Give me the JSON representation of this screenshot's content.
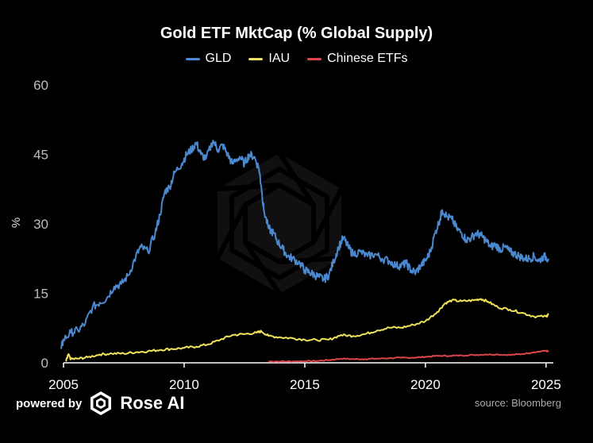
{
  "footer": {
    "powered_by": "powered by",
    "brand": "Rose AI",
    "source": "source: Bloomberg",
    "logo_icon": "rose-ai-logo-icon"
  },
  "colors": {
    "background": "#000000",
    "GLD": "#4a88cf",
    "IAU": "#f1e25a",
    "Chinese ETFs": "#d9454a"
  },
  "chart_data": {
    "type": "line",
    "title": "Gold ETF MktCap (% Global Supply)",
    "xlabel": "",
    "ylabel": "%",
    "xlim": [
      2005,
      2025.3
    ],
    "ylim": [
      0,
      60
    ],
    "x_ticks": [
      2005,
      2010,
      2015,
      2020,
      2025
    ],
    "y_ticks": [
      0,
      15,
      30,
      45,
      60
    ],
    "grid": false,
    "legend_position": "top-center",
    "series": [
      {
        "name": "GLD",
        "color": "#4a88cf",
        "points": [
          [
            2004.9,
            3
          ],
          [
            2005.0,
            5
          ],
          [
            2005.3,
            6.5
          ],
          [
            2005.6,
            7
          ],
          [
            2005.9,
            8.5
          ],
          [
            2006.2,
            12
          ],
          [
            2006.5,
            13
          ],
          [
            2006.8,
            14
          ],
          [
            2007.1,
            16.5
          ],
          [
            2007.4,
            17
          ],
          [
            2007.7,
            19
          ],
          [
            2008.0,
            23
          ],
          [
            2008.2,
            25
          ],
          [
            2008.5,
            24
          ],
          [
            2008.8,
            28
          ],
          [
            2009.0,
            32
          ],
          [
            2009.2,
            37
          ],
          [
            2009.4,
            38
          ],
          [
            2009.6,
            41
          ],
          [
            2009.9,
            43
          ],
          [
            2010.1,
            45
          ],
          [
            2010.3,
            46
          ],
          [
            2010.5,
            47.5
          ],
          [
            2010.7,
            45
          ],
          [
            2010.9,
            44
          ],
          [
            2011.2,
            48
          ],
          [
            2011.4,
            46
          ],
          [
            2011.6,
            47
          ],
          [
            2011.8,
            45
          ],
          [
            2012.0,
            43
          ],
          [
            2012.3,
            44.5
          ],
          [
            2012.5,
            43
          ],
          [
            2012.7,
            45
          ],
          [
            2012.9,
            44.5
          ],
          [
            2013.1,
            42
          ],
          [
            2013.2,
            38
          ],
          [
            2013.3,
            33
          ],
          [
            2013.5,
            29
          ],
          [
            2013.7,
            28
          ],
          [
            2013.9,
            26
          ],
          [
            2014.1,
            24.5
          ],
          [
            2014.3,
            23
          ],
          [
            2014.5,
            22.5
          ],
          [
            2014.8,
            21.5
          ],
          [
            2015.0,
            20
          ],
          [
            2015.2,
            19.5
          ],
          [
            2015.4,
            19
          ],
          [
            2015.6,
            18.5
          ],
          [
            2015.8,
            18
          ],
          [
            2016.0,
            19
          ],
          [
            2016.2,
            22
          ],
          [
            2016.4,
            25
          ],
          [
            2016.6,
            27
          ],
          [
            2016.8,
            25
          ],
          [
            2017.0,
            23.5
          ],
          [
            2017.3,
            24
          ],
          [
            2017.6,
            23
          ],
          [
            2017.9,
            23.5
          ],
          [
            2018.2,
            22.5
          ],
          [
            2018.5,
            22
          ],
          [
            2018.8,
            21
          ],
          [
            2019.0,
            21
          ],
          [
            2019.2,
            21.5
          ],
          [
            2019.4,
            20
          ],
          [
            2019.6,
            19.5
          ],
          [
            2019.8,
            21
          ],
          [
            2020.0,
            22
          ],
          [
            2020.2,
            24
          ],
          [
            2020.4,
            28
          ],
          [
            2020.6,
            31
          ],
          [
            2020.7,
            33
          ],
          [
            2020.9,
            31.5
          ],
          [
            2021.1,
            31
          ],
          [
            2021.3,
            29
          ],
          [
            2021.5,
            28
          ],
          [
            2021.7,
            26.5
          ],
          [
            2021.9,
            27
          ],
          [
            2022.1,
            28
          ],
          [
            2022.3,
            27.5
          ],
          [
            2022.5,
            26.5
          ],
          [
            2022.7,
            25
          ],
          [
            2022.9,
            25.5
          ],
          [
            2023.1,
            24.5
          ],
          [
            2023.3,
            25
          ],
          [
            2023.5,
            24
          ],
          [
            2023.7,
            23.5
          ],
          [
            2023.9,
            23
          ],
          [
            2024.1,
            22.5
          ],
          [
            2024.3,
            22.5
          ],
          [
            2024.5,
            23
          ],
          [
            2024.7,
            22
          ],
          [
            2024.9,
            23
          ],
          [
            2025.1,
            22.5
          ]
        ]
      },
      {
        "name": "IAU",
        "color": "#f1e25a",
        "points": [
          [
            2005.1,
            0.3
          ],
          [
            2005.2,
            1.8
          ],
          [
            2005.3,
            0.8
          ],
          [
            2005.6,
            0.9
          ],
          [
            2006.0,
            1.2
          ],
          [
            2006.5,
            1.8
          ],
          [
            2007.0,
            2.0
          ],
          [
            2007.5,
            2.0
          ],
          [
            2008.0,
            2.3
          ],
          [
            2008.5,
            2.5
          ],
          [
            2009.0,
            2.8
          ],
          [
            2009.5,
            3.0
          ],
          [
            2010.0,
            3.2
          ],
          [
            2010.5,
            3.5
          ],
          [
            2011.0,
            4.0
          ],
          [
            2011.5,
            5.0
          ],
          [
            2012.0,
            6.0
          ],
          [
            2012.5,
            6.2
          ],
          [
            2013.0,
            6.5
          ],
          [
            2013.2,
            6.8
          ],
          [
            2013.5,
            5.8
          ],
          [
            2014.0,
            5.5
          ],
          [
            2014.5,
            5.3
          ],
          [
            2015.0,
            5.0
          ],
          [
            2015.5,
            4.9
          ],
          [
            2016.0,
            5.0
          ],
          [
            2016.5,
            6.0
          ],
          [
            2017.0,
            5.8
          ],
          [
            2017.5,
            6.2
          ],
          [
            2018.0,
            7.0
          ],
          [
            2018.5,
            7.6
          ],
          [
            2019.0,
            7.6
          ],
          [
            2019.5,
            8.2
          ],
          [
            2020.0,
            9.0
          ],
          [
            2020.5,
            11.0
          ],
          [
            2020.8,
            12.8
          ],
          [
            2021.1,
            13.5
          ],
          [
            2021.5,
            13.3
          ],
          [
            2022.0,
            13.5
          ],
          [
            2022.3,
            13.8
          ],
          [
            2022.6,
            13.2
          ],
          [
            2023.0,
            12.0
          ],
          [
            2023.5,
            11.5
          ],
          [
            2024.0,
            10.8
          ],
          [
            2024.5,
            10.0
          ],
          [
            2025.0,
            10.0
          ],
          [
            2025.1,
            10.5
          ]
        ]
      },
      {
        "name": "Chinese ETFs",
        "color": "#d9454a",
        "points": [
          [
            2013.5,
            0.3
          ],
          [
            2014.0,
            0.3
          ],
          [
            2014.5,
            0.3
          ],
          [
            2015.0,
            0.35
          ],
          [
            2015.5,
            0.4
          ],
          [
            2016.0,
            0.6
          ],
          [
            2016.5,
            0.9
          ],
          [
            2017.0,
            0.8
          ],
          [
            2017.5,
            0.8
          ],
          [
            2018.0,
            0.9
          ],
          [
            2018.5,
            1.0
          ],
          [
            2019.0,
            1.1
          ],
          [
            2019.5,
            1.1
          ],
          [
            2020.0,
            1.3
          ],
          [
            2020.5,
            1.5
          ],
          [
            2021.0,
            1.5
          ],
          [
            2021.5,
            1.6
          ],
          [
            2022.0,
            1.7
          ],
          [
            2022.5,
            1.8
          ],
          [
            2023.0,
            1.8
          ],
          [
            2023.5,
            1.7
          ],
          [
            2024.0,
            1.9
          ],
          [
            2024.5,
            2.3
          ],
          [
            2025.0,
            2.6
          ],
          [
            2025.1,
            2.4
          ]
        ]
      }
    ]
  }
}
